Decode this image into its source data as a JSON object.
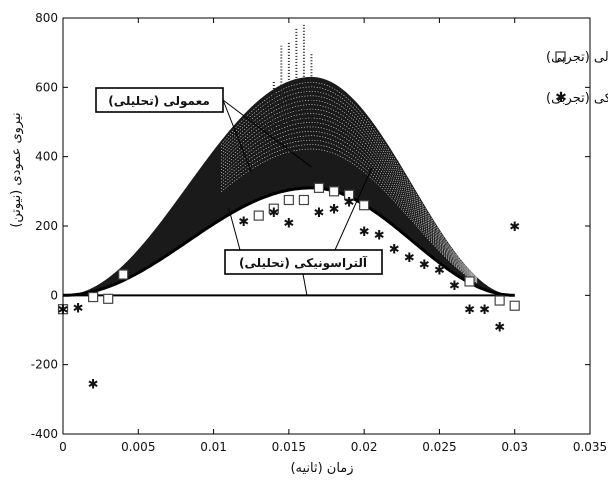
{
  "chart_data": {
    "type": "scatter",
    "xlabel": "زمان (ثانیه)",
    "ylabel": "نیروی عمودی (نیوتن)",
    "xlim": [
      0,
      0.035
    ],
    "ylim": [
      -400,
      800
    ],
    "x_ticks": [
      0,
      0.005,
      0.01,
      0.015,
      0.02,
      0.025,
      0.03,
      0.035
    ],
    "x_tick_labels": [
      "0",
      "0.005",
      "0.01",
      "0.015",
      "0.02",
      "0.025",
      "0.03",
      "0.035"
    ],
    "y_ticks": [
      -400,
      -200,
      0,
      200,
      400,
      600,
      800
    ],
    "y_tick_labels": [
      "-400",
      "-200",
      "0",
      "200",
      "400",
      "600",
      "800"
    ],
    "grid": false,
    "legend_position": "top-right",
    "legend": [
      {
        "label": "معمولی (تجربی)",
        "marker": "square"
      },
      {
        "label": "آلتراسونیکی (تجربی)",
        "marker": "star"
      }
    ],
    "annotations": [
      {
        "text": "معمولی (تحلیلی)"
      },
      {
        "text": "آلتراسونیکی (تحلیلی)"
      }
    ],
    "series": [
      {
        "name": "معمولی (تجربی)",
        "marker": "square",
        "x": [
          0,
          0.002,
          0.003,
          0.004,
          0.013,
          0.014,
          0.015,
          0.016,
          0.017,
          0.018,
          0.019,
          0.02,
          0.027,
          0.029,
          0.03
        ],
        "y": [
          -40,
          -5,
          -10,
          60,
          230,
          250,
          275,
          275,
          310,
          300,
          290,
          260,
          40,
          -15,
          -30
        ]
      },
      {
        "name": "آلتراسونیکی (تجربی)",
        "marker": "star",
        "x": [
          0,
          0.001,
          0.002,
          0.012,
          0.014,
          0.015,
          0.017,
          0.018,
          0.019,
          0.02,
          0.021,
          0.022,
          0.023,
          0.024,
          0.025,
          0.026,
          0.027,
          0.028,
          0.029,
          0.03
        ],
        "y": [
          -40,
          -35,
          -255,
          215,
          240,
          210,
          240,
          250,
          270,
          185,
          175,
          135,
          110,
          90,
          75,
          30,
          -40,
          -40,
          -90,
          200
        ]
      },
      {
        "name": "معمولی (تحلیلی)",
        "kind": "vibrating-envelope",
        "x_start": 0,
        "x_end": 0.03,
        "peak_x": 0.0165,
        "lower_peak": 310,
        "upper_peak": 630,
        "spike_x": [
          0.0135,
          0.014,
          0.0145,
          0.015,
          0.0155,
          0.016,
          0.0165
        ],
        "spike_y": [
          560,
          620,
          720,
          730,
          770,
          780,
          700
        ]
      },
      {
        "name": "آلتراسونیکی (تحلیلی)",
        "kind": "line",
        "x": [
          0,
          0.003,
          0.006,
          0.009,
          0.012,
          0.015,
          0.0165,
          0.018,
          0.021,
          0.024,
          0.027,
          0.03
        ],
        "y": [
          0,
          30,
          100,
          190,
          265,
          305,
          310,
          305,
          260,
          180,
          85,
          0
        ]
      }
    ]
  }
}
